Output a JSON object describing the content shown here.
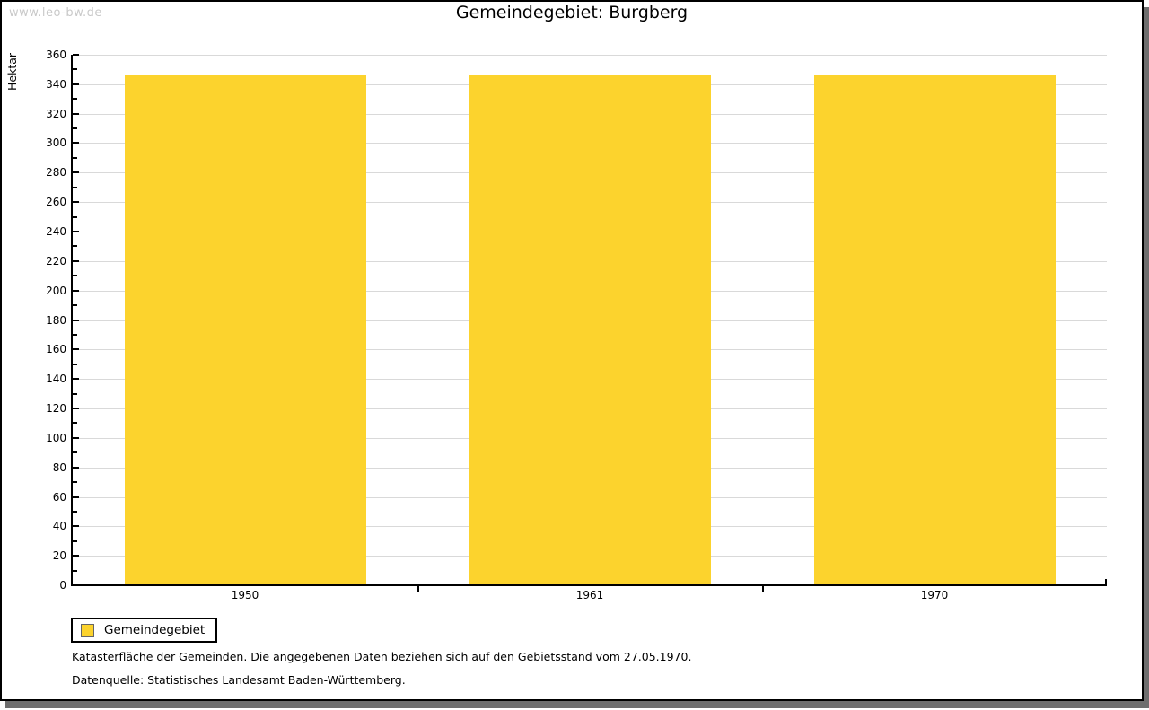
{
  "watermark": "www.leo-bw.de",
  "title": "Gemeindegebiet: Burgberg",
  "chart_data": {
    "type": "bar",
    "title": "Gemeindegebiet: Burgberg",
    "categories": [
      "1950",
      "1961",
      "1970"
    ],
    "series": [
      {
        "name": "Gemeindegebiet",
        "values": [
          346,
          346,
          346
        ],
        "color": "#fcd32d"
      }
    ],
    "xlabel": "",
    "ylabel": "Hektar",
    "ylim": [
      0,
      360
    ],
    "ytick_step": 20,
    "yminor_step": 10,
    "grid": "horizontal-major-only",
    "legend_position": "bottom-left"
  },
  "footnotes": [
    "Katasterfläche der Gemeinden. Die angegebenen Daten beziehen sich auf den Gebietsstand vom 27.05.1970.",
    "Datenquelle: Statistisches Landesamt Baden-Württemberg."
  ],
  "colors": {
    "bar": "#fcd32d",
    "grid": "#d9d9d9",
    "axis": "#000000",
    "watermark": "#c9c9c9",
    "shadow": "#6e6e6e"
  }
}
